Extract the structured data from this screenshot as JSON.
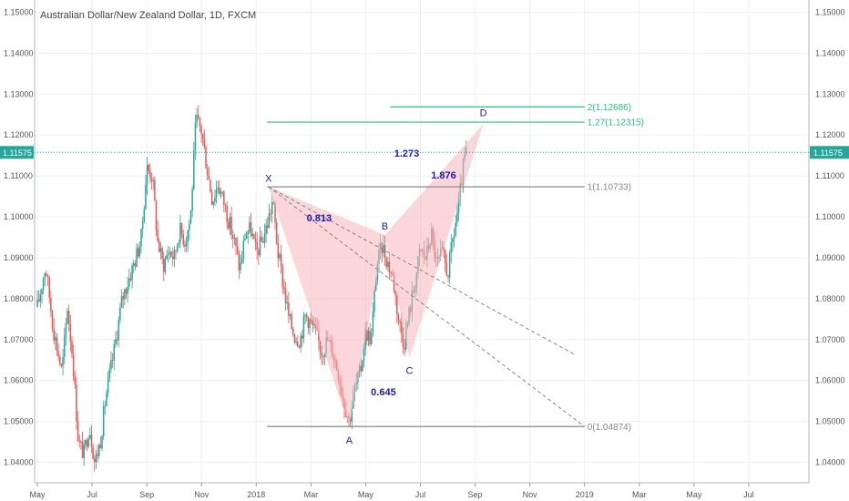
{
  "chart_data": {
    "type": "candlestick",
    "title": "Australian Dollar/New Zealand Dollar, 1D, FXCM",
    "current_price": "1.11575",
    "y_ticks": [
      "1.04000",
      "1.05000",
      "1.06000",
      "1.07000",
      "1.08000",
      "1.09000",
      "1.10000",
      "1.11000",
      "1.12000",
      "1.13000",
      "1.14000",
      "1.15000"
    ],
    "y_tick_values": [
      1.04,
      1.05,
      1.06,
      1.07,
      1.08,
      1.09,
      1.1,
      1.11,
      1.12,
      1.13,
      1.14,
      1.15
    ],
    "ylim": [
      1.035,
      1.153
    ],
    "x_ticks": [
      "May",
      "Jul",
      "Sep",
      "Nov",
      "2018",
      "Mar",
      "May",
      "Jul",
      "Sep",
      "Nov",
      "2019",
      "Mar",
      "May",
      "Jul"
    ],
    "x_tick_months": [
      0,
      2,
      4,
      6,
      8,
      10,
      12,
      14,
      16,
      18,
      20,
      22,
      24,
      26
    ],
    "x_range_months": [
      -0.1,
      28.2
    ],
    "price_path": [
      [
        0.0,
        1.078
      ],
      [
        0.3,
        1.088
      ],
      [
        0.6,
        1.072
      ],
      [
        0.9,
        1.062
      ],
      [
        1.1,
        1.078
      ],
      [
        1.3,
        1.065
      ],
      [
        1.5,
        1.045
      ],
      [
        1.7,
        1.042
      ],
      [
        1.9,
        1.049
      ],
      [
        2.1,
        1.04
      ],
      [
        2.3,
        1.045
      ],
      [
        2.5,
        1.056
      ],
      [
        2.8,
        1.067
      ],
      [
        3.1,
        1.08
      ],
      [
        3.4,
        1.086
      ],
      [
        3.6,
        1.09
      ],
      [
        3.8,
        1.095
      ],
      [
        4.0,
        1.112
      ],
      [
        4.2,
        1.11
      ],
      [
        4.4,
        1.094
      ],
      [
        4.6,
        1.088
      ],
      [
        4.8,
        1.092
      ],
      [
        5.0,
        1.09
      ],
      [
        5.2,
        1.097
      ],
      [
        5.4,
        1.094
      ],
      [
        5.6,
        1.1
      ],
      [
        5.8,
        1.124
      ],
      [
        6.0,
        1.121
      ],
      [
        6.2,
        1.112
      ],
      [
        6.4,
        1.104
      ],
      [
        6.6,
        1.108
      ],
      [
        6.8,
        1.104
      ],
      [
        7.0,
        1.099
      ],
      [
        7.2,
        1.094
      ],
      [
        7.4,
        1.087
      ],
      [
        7.6,
        1.096
      ],
      [
        7.8,
        1.097
      ],
      [
        8.0,
        1.091
      ],
      [
        8.2,
        1.094
      ],
      [
        8.4,
        1.098
      ],
      [
        8.6,
        1.104
      ],
      [
        8.8,
        1.091
      ],
      [
        9.0,
        1.083
      ],
      [
        9.2,
        1.075
      ],
      [
        9.4,
        1.071
      ],
      [
        9.6,
        1.07
      ],
      [
        9.8,
        1.076
      ],
      [
        10.0,
        1.074
      ],
      [
        10.2,
        1.071
      ],
      [
        10.4,
        1.067
      ],
      [
        10.6,
        1.07
      ],
      [
        10.8,
        1.067
      ],
      [
        11.0,
        1.062
      ],
      [
        11.2,
        1.055
      ],
      [
        11.4,
        1.05
      ],
      [
        11.6,
        1.058
      ],
      [
        11.8,
        1.062
      ],
      [
        12.0,
        1.072
      ],
      [
        12.2,
        1.07
      ],
      [
        12.4,
        1.088
      ],
      [
        12.6,
        1.093
      ],
      [
        12.8,
        1.089
      ],
      [
        13.0,
        1.085
      ],
      [
        13.2,
        1.075
      ],
      [
        13.4,
        1.069
      ],
      [
        13.6,
        1.077
      ],
      [
        13.8,
        1.084
      ],
      [
        14.0,
        1.092
      ],
      [
        14.2,
        1.09
      ],
      [
        14.4,
        1.096
      ],
      [
        14.6,
        1.088
      ],
      [
        14.8,
        1.091
      ],
      [
        15.0,
        1.086
      ],
      [
        15.2,
        1.095
      ],
      [
        15.4,
        1.103
      ],
      [
        15.6,
        1.114
      ],
      [
        15.7,
        1.116
      ]
    ],
    "harmonic_pattern": {
      "points": [
        {
          "label": "X",
          "month": 8.45,
          "price": 1.10733
        },
        {
          "label": "A",
          "month": 11.4,
          "price": 1.04874
        },
        {
          "label": "B",
          "month": 12.7,
          "price": 1.0956
        },
        {
          "label": "C",
          "month": 13.6,
          "price": 1.0655
        },
        {
          "label": "D",
          "month": 16.3,
          "price": 1.1227
        }
      ],
      "label_marks": [
        {
          "label": "X",
          "month": 8.45,
          "price": 1.1095
        },
        {
          "label": "A",
          "month": 11.4,
          "price": 1.0455
        },
        {
          "label": "B",
          "month": 12.7,
          "price": 1.0978
        },
        {
          "label": "C",
          "month": 13.6,
          "price": 1.0625
        },
        {
          "label": "D",
          "month": 16.3,
          "price": 1.1255
        }
      ],
      "ratio_marks": [
        {
          "text": "0.813",
          "month": 10.3,
          "price": 1.0998
        },
        {
          "text": "0.645",
          "month": 12.65,
          "price": 1.0573
        },
        {
          "text": "1.273",
          "month": 13.5,
          "price": 1.1156
        },
        {
          "text": "1.876",
          "month": 14.85,
          "price": 1.1102
        }
      ]
    },
    "fib_levels": [
      {
        "label": "0(1.04874)",
        "price": 1.04874,
        "start_month": 8.4,
        "end_month": 20.0,
        "color": "#888888"
      },
      {
        "label": "1(1.10733)",
        "price": 1.10733,
        "start_month": 8.4,
        "end_month": 20.0,
        "color": "#888888"
      },
      {
        "label": "1.27(1.12315)",
        "price": 1.12315,
        "start_month": 8.4,
        "end_month": 20.0,
        "color": "#26c281"
      },
      {
        "label": "2(1.12686)",
        "price": 1.12686,
        "start_month": 12.9,
        "end_month": 20.0,
        "color": "#26c281"
      }
    ],
    "dashed_lines": [
      {
        "from_month": 8.45,
        "from_price": 1.10733,
        "to_month": 20.0,
        "to_price": 1.04874
      },
      {
        "from_month": 8.45,
        "from_price": 1.10733,
        "to_month": 19.6,
        "to_price": 1.0665
      }
    ],
    "colors": {
      "up": "#26a69a",
      "down": "#ef5350",
      "pattern_fill": "#f7b6bd",
      "price_line": "#26a69a",
      "grid": "#eef0f4"
    }
  }
}
